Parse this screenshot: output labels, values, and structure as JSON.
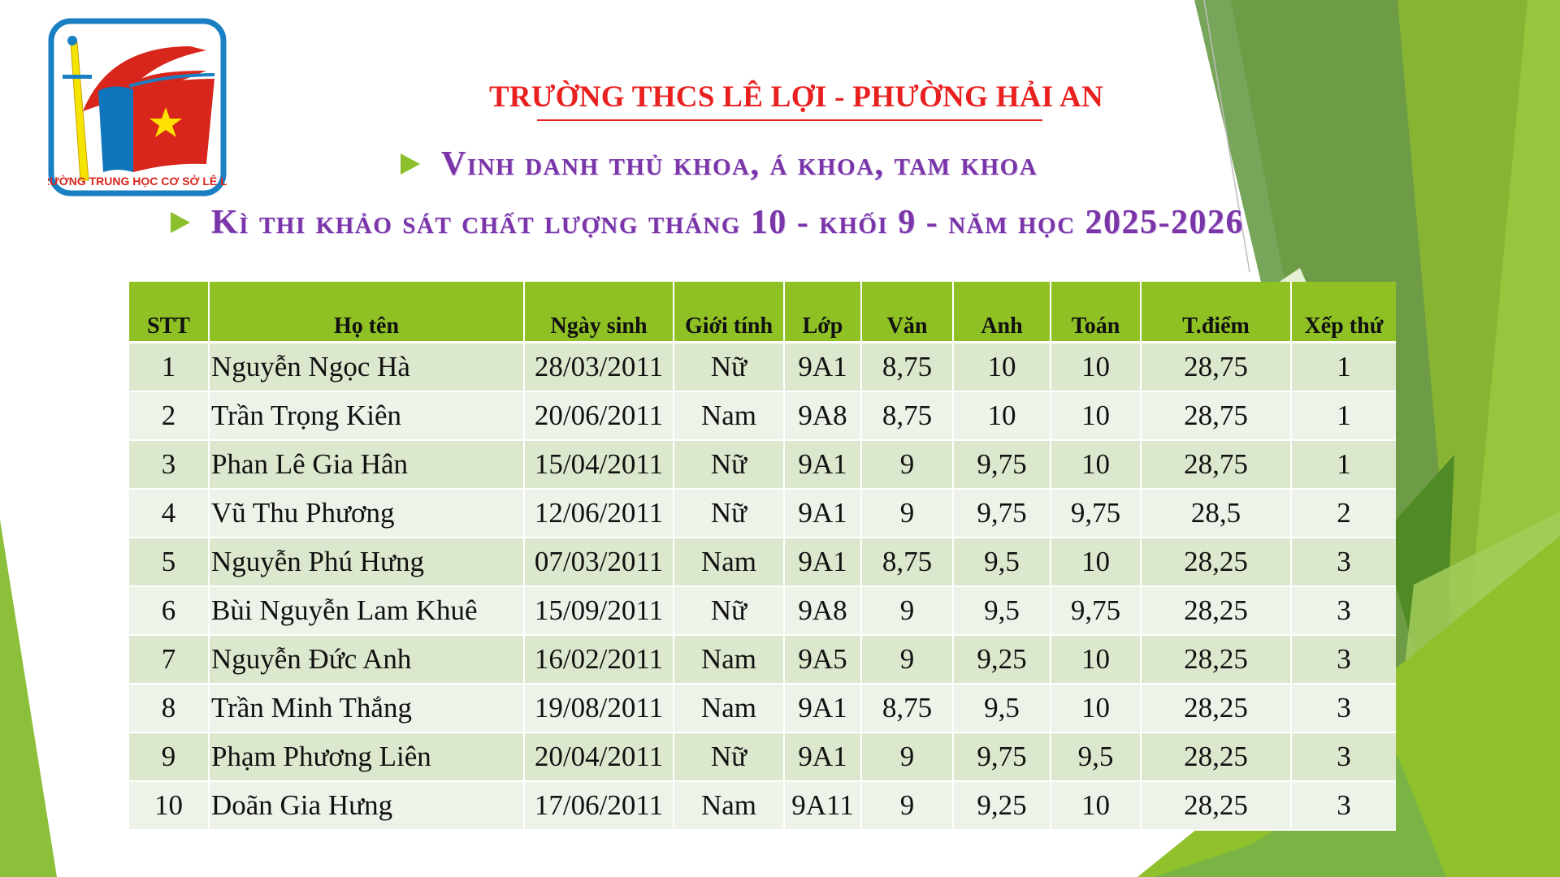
{
  "logo": {
    "text": "TRƯỜNG TRUNG HỌC CƠ SỞ LÊ LỢI"
  },
  "header": {
    "school": "TRƯỜNG THCS LÊ LỢI - PHƯỜNG HẢI AN",
    "line1": "Vinh danh thủ khoa, á khoa, tam khoa",
    "line2": "Kì thi khảo sát chất lượng tháng 10 - khối 9 - năm học 2025-2026"
  },
  "colors": {
    "title_red": "#e8201f",
    "subtitle_purple": "#7a35a8",
    "header_green": "#8fc125"
  },
  "table": {
    "columns": [
      "STT",
      "Họ tên",
      "Ngày sinh",
      "Giới tính",
      "Lớp",
      "Văn",
      "Anh",
      "Toán",
      "T.điểm",
      "Xếp thứ"
    ],
    "rows": [
      [
        "1",
        "Nguyễn Ngọc Hà",
        "28/03/2011",
        "Nữ",
        "9A1",
        "8,75",
        "10",
        "10",
        "28,75",
        "1"
      ],
      [
        "2",
        "Trần Trọng Kiên",
        "20/06/2011",
        "Nam",
        "9A8",
        "8,75",
        "10",
        "10",
        "28,75",
        "1"
      ],
      [
        "3",
        "Phan Lê Gia Hân",
        "15/04/2011",
        "Nữ",
        "9A1",
        "9",
        "9,75",
        "10",
        "28,75",
        "1"
      ],
      [
        "4",
        "Vũ Thu Phương",
        "12/06/2011",
        "Nữ",
        "9A1",
        "9",
        "9,75",
        "9,75",
        "28,5",
        "2"
      ],
      [
        "5",
        "Nguyễn Phú Hưng",
        "07/03/2011",
        "Nam",
        "9A1",
        "8,75",
        "9,5",
        "10",
        "28,25",
        "3"
      ],
      [
        "6",
        "Bùi Nguyễn Lam Khuê",
        "15/09/2011",
        "Nữ",
        "9A8",
        "9",
        "9,5",
        "9,75",
        "28,25",
        "3"
      ],
      [
        "7",
        "Nguyễn Đức Anh",
        "16/02/2011",
        "Nam",
        "9A5",
        "9",
        "9,25",
        "10",
        "28,25",
        "3"
      ],
      [
        "8",
        "Trần Minh Thắng",
        "19/08/2011",
        "Nam",
        "9A1",
        "8,75",
        "9,5",
        "10",
        "28,25",
        "3"
      ],
      [
        "9",
        "Phạm Phương Liên",
        "20/04/2011",
        "Nữ",
        "9A1",
        "9",
        "9,75",
        "9,5",
        "28,25",
        "3"
      ],
      [
        "10",
        "Doãn Gia Hưng",
        "17/06/2011",
        "Nam",
        "9A11",
        "9",
        "9,25",
        "10",
        "28,25",
        "3"
      ]
    ]
  }
}
